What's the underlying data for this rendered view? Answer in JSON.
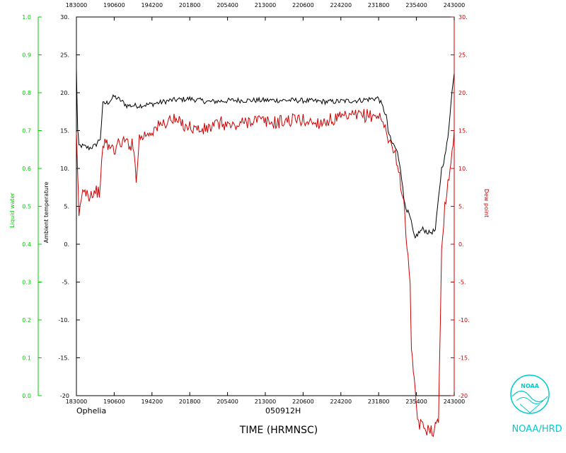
{
  "chart_data": {
    "type": "line",
    "storm_name": "Ophelia",
    "date_code": "050912H",
    "xlabel": "TIME (HRMNSC)",
    "x_tick_labels": [
      "183000",
      "190600",
      "194200",
      "201800",
      "205400",
      "213000",
      "220600",
      "224200",
      "231800",
      "235400",
      "243000"
    ],
    "x_range_hours": [
      18.5,
      24.5
    ],
    "left_outer_axis": {
      "label": "Liquid water",
      "range": [
        0.0,
        1.0
      ],
      "tick_labels": [
        "0.0",
        "0.1",
        "0.2",
        "0.3",
        "0.4",
        "0.5",
        "0.6",
        "0.7",
        "0.8",
        "0.9",
        "1.0"
      ],
      "color": "#00cc00"
    },
    "left_inner_axis": {
      "label": "Ambient temperature",
      "range": [
        -20,
        30
      ],
      "tick_labels": [
        "-20",
        "-15.",
        "-10.",
        "-5.",
        "0.",
        "5.",
        "10.",
        "15.",
        "20.",
        "25.",
        "30."
      ],
      "color": "#000000"
    },
    "right_axis": {
      "label": "Dew point",
      "range": [
        -20,
        30
      ],
      "tick_labels": [
        "-20",
        "-15.",
        "-10.",
        "-5.",
        "0.",
        "5.",
        "10.",
        "15.",
        "20.",
        "25.",
        "30."
      ],
      "color": "#cc0000"
    },
    "series": [
      {
        "name": "Ambient temperature",
        "color": "#000000",
        "x_hours": [
          18.5,
          18.52,
          18.54,
          18.58,
          18.7,
          18.8,
          18.88,
          18.92,
          19.0,
          19.1,
          19.2,
          19.3,
          19.5,
          19.7,
          20.0,
          20.3,
          20.6,
          21.0,
          21.5,
          22.0,
          22.5,
          23.0,
          23.3,
          23.42,
          23.45,
          23.5,
          23.55,
          23.6,
          23.65,
          23.7,
          23.75,
          23.8,
          23.85,
          23.88,
          23.9,
          24.0,
          24.1,
          24.2,
          24.25,
          24.3,
          24.35,
          24.4,
          24.45,
          24.5
        ],
        "y": [
          23.0,
          15.0,
          13.0,
          13.0,
          12.7,
          13.0,
          14.0,
          18.5,
          18.7,
          19.5,
          19.0,
          18.3,
          18.3,
          18.5,
          19.0,
          19.2,
          18.8,
          19.0,
          19.0,
          19.0,
          18.8,
          19.0,
          19.3,
          17.0,
          15.0,
          13.5,
          13.0,
          12.0,
          10.0,
          6.0,
          4.5,
          3.5,
          1.5,
          0.5,
          1.2,
          2.0,
          1.5,
          1.8,
          6.0,
          10.0,
          11.5,
          14.0,
          19.0,
          22.5
        ]
      },
      {
        "name": "Dew point",
        "color": "#cc0000",
        "x_hours": [
          18.5,
          18.52,
          18.54,
          18.58,
          18.62,
          18.7,
          18.8,
          18.88,
          18.92,
          19.0,
          19.1,
          19.2,
          19.3,
          19.4,
          19.45,
          19.5,
          19.6,
          19.7,
          19.8,
          20.0,
          20.3,
          20.5,
          20.8,
          21.0,
          21.3,
          21.6,
          22.0,
          22.3,
          22.6,
          23.0,
          23.3,
          23.42,
          23.5,
          23.55,
          23.6,
          23.65,
          23.7,
          23.75,
          23.8,
          23.82,
          23.85,
          23.88,
          23.9,
          23.95,
          24.0,
          24.05,
          24.1,
          24.15,
          24.2,
          24.22,
          24.25,
          24.28,
          24.3,
          24.35,
          24.4,
          24.45,
          24.5
        ],
        "y": [
          14.0,
          9.0,
          4.0,
          6.0,
          7.5,
          6.5,
          7.0,
          7.0,
          13.5,
          13.0,
          12.5,
          13.5,
          13.5,
          13.0,
          9.0,
          14.0,
          14.5,
          15.0,
          15.5,
          16.5,
          15.5,
          15.0,
          16.0,
          15.5,
          16.5,
          16.0,
          16.5,
          16.0,
          16.5,
          17.0,
          17.0,
          15.0,
          13.0,
          12.0,
          11.0,
          8.0,
          5.0,
          0.0,
          -6.0,
          -13.0,
          -17.0,
          -20.0,
          -22.0,
          -23.8,
          -24.2,
          -24.5,
          -24.0,
          -24.6,
          -24.3,
          -24.0,
          -23.0,
          -10.0,
          0.0,
          5.0,
          8.0,
          11.0,
          15.0
        ]
      }
    ],
    "grid": false,
    "legend": "none"
  },
  "branding": {
    "logo_text": "NOAA",
    "org_label": "NOAA/HRD",
    "logo_color": "#00cccc"
  }
}
